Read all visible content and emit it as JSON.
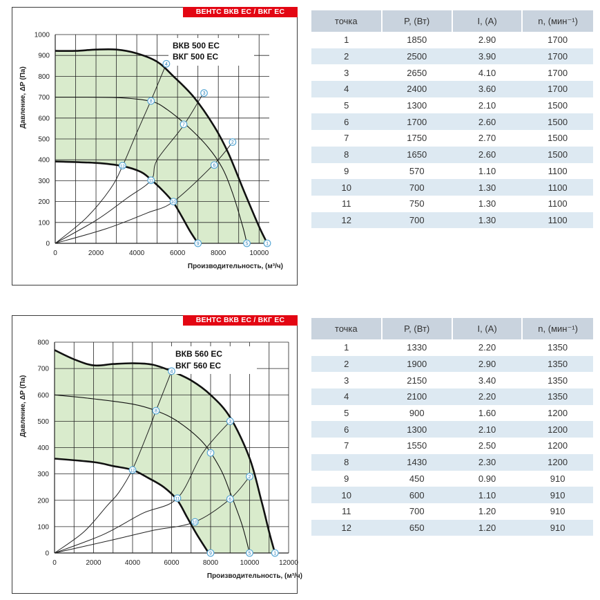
{
  "charts": [
    {
      "badge": "ВЕНТС ВКВ ЕС / ВКГ ЕС",
      "model_line1": "ВКВ 500 ЕС",
      "model_line2": "ВКГ 500 ЕС",
      "ylabel": "Давление, ΔP (Па)",
      "xlabel": "Производительность, (м³/ч)",
      "y_ticks": [
        "0",
        "100",
        "200",
        "300",
        "400",
        "500",
        "600",
        "700",
        "800",
        "900",
        "1000"
      ],
      "x_ticks": [
        "0",
        "2000",
        "4000",
        "6000",
        "8000",
        "10000"
      ],
      "table_headers": [
        "точка",
        "P, (Вт)",
        "I, (А)",
        "n, (мин⁻¹)"
      ],
      "rows": [
        [
          "1",
          "1850",
          "2.90",
          "1700"
        ],
        [
          "2",
          "2500",
          "3.90",
          "1700"
        ],
        [
          "3",
          "2650",
          "4.10",
          "1700"
        ],
        [
          "4",
          "2400",
          "3.60",
          "1700"
        ],
        [
          "5",
          "1300",
          "2.10",
          "1500"
        ],
        [
          "6",
          "1700",
          "2.60",
          "1500"
        ],
        [
          "7",
          "1750",
          "2.70",
          "1500"
        ],
        [
          "8",
          "1650",
          "2.60",
          "1500"
        ],
        [
          "9",
          "570",
          "1.10",
          "1100"
        ],
        [
          "10",
          "700",
          "1.30",
          "1100"
        ],
        [
          "11",
          "750",
          "1.30",
          "1100"
        ],
        [
          "12",
          "700",
          "1.30",
          "1100"
        ]
      ]
    },
    {
      "badge": "ВЕНТС ВКВ ЕС / ВКГ ЕС",
      "model_line1": "ВКВ 560 ЕС",
      "model_line2": "ВКГ 560 ЕС",
      "ylabel": "Давление, ΔP (Па)",
      "xlabel": "Производительность, (м³/ч)",
      "y_ticks": [
        "0",
        "100",
        "200",
        "300",
        "400",
        "500",
        "600",
        "700",
        "800"
      ],
      "x_ticks": [
        "0",
        "2000",
        "4000",
        "6000",
        "8000",
        "10000",
        "12000"
      ],
      "table_headers": [
        "точка",
        "P, (Вт)",
        "I, (А)",
        "n, (мин⁻¹)"
      ],
      "rows": [
        [
          "1",
          "1330",
          "2.20",
          "1350"
        ],
        [
          "2",
          "1900",
          "2.90",
          "1350"
        ],
        [
          "3",
          "2150",
          "3.40",
          "1350"
        ],
        [
          "4",
          "2100",
          "2.20",
          "1350"
        ],
        [
          "5",
          "900",
          "1.60",
          "1200"
        ],
        [
          "6",
          "1300",
          "2.10",
          "1200"
        ],
        [
          "7",
          "1550",
          "2.50",
          "1200"
        ],
        [
          "8",
          "1430",
          "2.30",
          "1200"
        ],
        [
          "9",
          "450",
          "0.90",
          "910"
        ],
        [
          "10",
          "600",
          "1.10",
          "910"
        ],
        [
          "11",
          "700",
          "1.20",
          "910"
        ],
        [
          "12",
          "650",
          "1.20",
          "910"
        ]
      ]
    }
  ],
  "colors": {
    "badge": "#e30613",
    "fill": "#d9ebcc",
    "header": "#c9d3de",
    "row_alt": "#dde9f2",
    "marker": "#5aa9d6"
  },
  "chart_data": [
    {
      "type": "line",
      "xlim": [
        0,
        10500
      ],
      "ylim": [
        0,
        1000
      ],
      "x_step": 1000,
      "y_step": 100,
      "grid": true,
      "curves": [
        {
          "speed": "max",
          "points": [
            [
              0,
              922
            ],
            [
              1000,
              922
            ],
            [
              2000,
              928
            ],
            [
              3000,
              928
            ],
            [
              4000,
              910
            ],
            [
              5000,
              870
            ],
            [
              5800,
              800
            ],
            [
              6800,
              700
            ],
            [
              7800,
              560
            ],
            [
              8500,
              430
            ],
            [
              9300,
              240
            ],
            [
              10000,
              80
            ],
            [
              10400,
              0
            ]
          ]
        },
        {
          "speed": "mid",
          "points": [
            [
              0,
              700
            ],
            [
              3000,
              698
            ],
            [
              4700,
              680
            ],
            [
              5500,
              640
            ],
            [
              6500,
              560
            ],
            [
              7500,
              460
            ],
            [
              8200,
              360
            ],
            [
              8700,
              240
            ],
            [
              9200,
              80
            ],
            [
              9400,
              0
            ]
          ]
        },
        {
          "speed": "min",
          "points": [
            [
              0,
              392
            ],
            [
              2000,
              385
            ],
            [
              3300,
              370
            ],
            [
              4200,
              342
            ],
            [
              4700,
              305
            ],
            [
              5300,
              250
            ],
            [
              5800,
              195
            ],
            [
              6200,
              130
            ],
            [
              6600,
              60
            ],
            [
              7000,
              0
            ]
          ]
        }
      ],
      "system_lines": [
        {
          "points": [
            [
              0,
              0
            ],
            [
              1500,
              120
            ],
            [
              2700,
              260
            ],
            [
              3300,
              370
            ],
            [
              4000,
              530
            ],
            [
              4700,
              685
            ],
            [
              5450,
              860
            ]
          ]
        },
        {
          "points": [
            [
              0,
              0
            ],
            [
              2000,
              110
            ],
            [
              3500,
              215
            ],
            [
              4700,
              302
            ],
            [
              5000,
              400
            ],
            [
              6300,
              565
            ],
            [
              7300,
              725
            ]
          ]
        },
        {
          "points": [
            [
              0,
              0
            ],
            [
              2500,
              70
            ],
            [
              4500,
              145
            ],
            [
              5800,
              200
            ],
            [
              7800,
              380
            ],
            [
              8700,
              485
            ]
          ]
        }
      ],
      "points": [
        {
          "id": "1",
          "x": 10400,
          "y": 0
        },
        {
          "id": "2",
          "x": 8700,
          "y": 485
        },
        {
          "id": "3",
          "x": 7300,
          "y": 720
        },
        {
          "id": "4",
          "x": 5450,
          "y": 860
        },
        {
          "id": "5",
          "x": 9400,
          "y": 0
        },
        {
          "id": "6",
          "x": 7800,
          "y": 375
        },
        {
          "id": "7",
          "x": 6300,
          "y": 570
        },
        {
          "id": "8",
          "x": 4700,
          "y": 682
        },
        {
          "id": "9",
          "x": 7000,
          "y": 0
        },
        {
          "id": "10",
          "x": 5800,
          "y": 200
        },
        {
          "id": "11",
          "x": 4700,
          "y": 302
        },
        {
          "id": "12",
          "x": 3300,
          "y": 372
        }
      ]
    },
    {
      "type": "line",
      "xlim": [
        0,
        12000
      ],
      "ylim": [
        0,
        800
      ],
      "x_step": 1000,
      "y_step": 100,
      "grid": true,
      "curves": [
        {
          "speed": "max",
          "points": [
            [
              0,
              770
            ],
            [
              1000,
              735
            ],
            [
              2000,
              712
            ],
            [
              3000,
              717
            ],
            [
              4000,
              720
            ],
            [
              5000,
              715
            ],
            [
              6000,
              690
            ],
            [
              7000,
              655
            ],
            [
              8000,
              600
            ],
            [
              9000,
              515
            ],
            [
              10000,
              360
            ],
            [
              10600,
              200
            ],
            [
              11000,
              80
            ],
            [
              11300,
              0
            ]
          ]
        },
        {
          "speed": "mid",
          "points": [
            [
              0,
              600
            ],
            [
              2000,
              585
            ],
            [
              4000,
              565
            ],
            [
              5200,
              540
            ],
            [
              6300,
              500
            ],
            [
              7600,
              420
            ],
            [
              8500,
              320
            ],
            [
              9000,
              230
            ],
            [
              9600,
              110
            ],
            [
              10000,
              0
            ]
          ]
        },
        {
          "speed": "min",
          "points": [
            [
              0,
              358
            ],
            [
              2000,
              345
            ],
            [
              3000,
              330
            ],
            [
              4000,
              315
            ],
            [
              4800,
              285
            ],
            [
              5600,
              250
            ],
            [
              6300,
              200
            ],
            [
              6800,
              135
            ],
            [
              7300,
              70
            ],
            [
              7900,
              0
            ]
          ]
        }
      ],
      "system_lines": [
        {
          "points": [
            [
              0,
              0
            ],
            [
              1500,
              80
            ],
            [
              2700,
              180
            ],
            [
              3300,
              230
            ],
            [
              4000,
              318
            ],
            [
              4800,
              460
            ],
            [
              5200,
              540
            ],
            [
              6000,
              690
            ]
          ]
        },
        {
          "points": [
            [
              0,
              0
            ],
            [
              2500,
              70
            ],
            [
              4500,
              150
            ],
            [
              6300,
              208
            ],
            [
              7600,
              380
            ],
            [
              9000,
              500
            ]
          ]
        },
        {
          "points": [
            [
              0,
              0
            ],
            [
              3000,
              50
            ],
            [
              5000,
              85
            ],
            [
              7200,
              118
            ],
            [
              9000,
              205
            ],
            [
              10000,
              290
            ]
          ]
        }
      ],
      "points": [
        {
          "id": "1",
          "x": 11300,
          "y": 0
        },
        {
          "id": "2",
          "x": 10000,
          "y": 290
        },
        {
          "id": "3",
          "x": 9000,
          "y": 500
        },
        {
          "id": "4",
          "x": 6000,
          "y": 690
        },
        {
          "id": "5",
          "x": 10000,
          "y": 0
        },
        {
          "id": "6",
          "x": 9000,
          "y": 205
        },
        {
          "id": "7",
          "x": 8000,
          "y": 380
        },
        {
          "id": "8",
          "x": 5200,
          "y": 540
        },
        {
          "id": "9",
          "x": 8000,
          "y": 0
        },
        {
          "id": "10",
          "x": 7200,
          "y": 118
        },
        {
          "id": "11",
          "x": 6300,
          "y": 208
        },
        {
          "id": "12",
          "x": 4000,
          "y": 315
        }
      ]
    }
  ]
}
